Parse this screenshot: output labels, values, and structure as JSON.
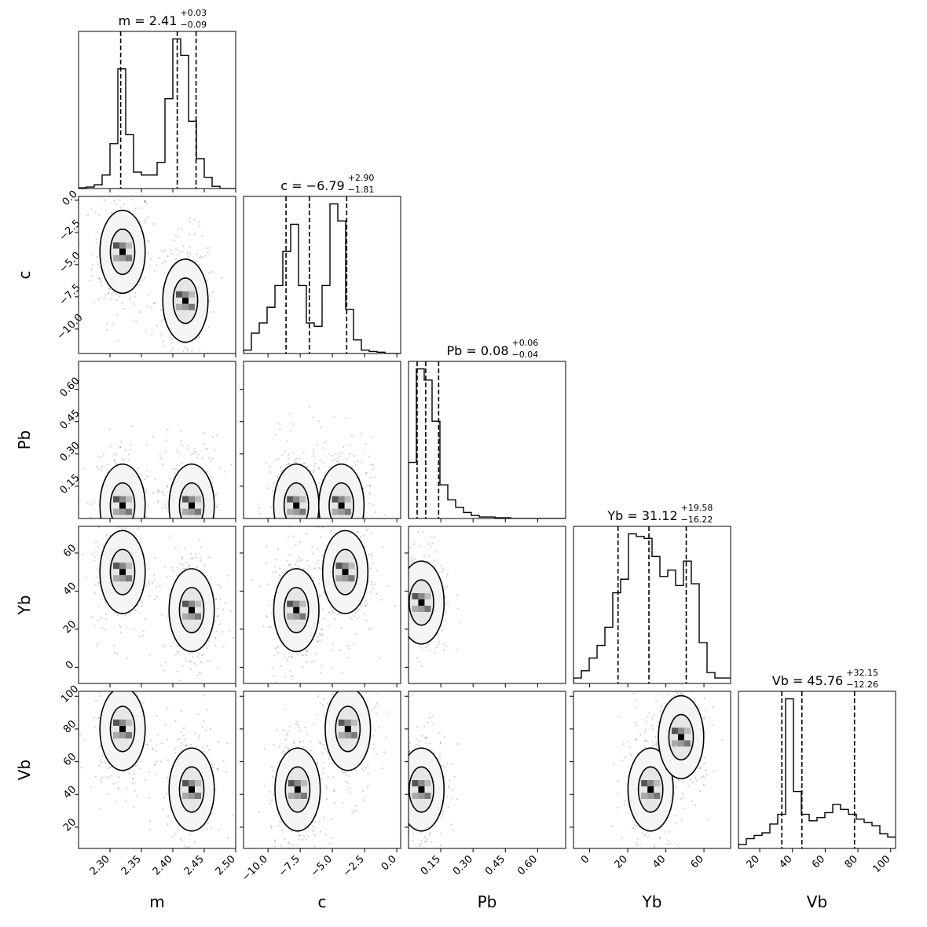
{
  "chart_data": {
    "type": "corner",
    "parameters": [
      "m",
      "c",
      "Pb",
      "Yb",
      "Vb"
    ],
    "axis_labels": [
      "m",
      "c",
      "Pb",
      "Yb",
      "Vb"
    ],
    "ranges": {
      "m": [
        2.25,
        2.5
      ],
      "c": [
        -11.9,
        0.3
      ],
      "Pb": [
        0.0,
        0.73
      ],
      "Yb": [
        -8.5,
        74.0
      ],
      "Vb": [
        7.0,
        103.0
      ]
    },
    "ticks": {
      "m": {
        "values": [
          2.3,
          2.35,
          2.4,
          2.45,
          2.5
        ],
        "labels": [
          "2.30",
          "2.35",
          "2.40",
          "2.45",
          "2.50"
        ]
      },
      "c": {
        "values": [
          -10.0,
          -7.5,
          -5.0,
          -2.5,
          0.0
        ],
        "labels": [
          "−10.0",
          "−7.5",
          "−5.0",
          "−2.5",
          "0.0"
        ]
      },
      "Pb": {
        "values": [
          0.15,
          0.3,
          0.45,
          0.6
        ],
        "labels": [
          "0.15",
          "0.30",
          "0.45",
          "0.60"
        ]
      },
      "Yb": {
        "values": [
          0,
          20,
          40,
          60
        ],
        "labels": [
          "0",
          "20",
          "40",
          "60"
        ]
      },
      "Vb": {
        "values": [
          20,
          40,
          60,
          80,
          100
        ],
        "labels": [
          "20",
          "40",
          "60",
          "80",
          "100"
        ]
      }
    },
    "titles": [
      {
        "param": "m",
        "name": "m",
        "median": "2.41",
        "plus": "+0.03",
        "minus": "−0.09"
      },
      {
        "param": "c",
        "name": "c",
        "median": "−6.79",
        "plus": "+2.90",
        "minus": "−1.81"
      },
      {
        "param": "Pb",
        "name": "Pb",
        "median": "0.08",
        "plus": "+0.06",
        "minus": "−0.04"
      },
      {
        "param": "Yb",
        "name": "Yb",
        "median": "31.12",
        "plus": "+19.58",
        "minus": "−16.22"
      },
      {
        "param": "Vb",
        "name": "Vb",
        "median": "45.76",
        "plus": "+32.15",
        "minus": "−12.26"
      }
    ],
    "quantiles": {
      "m": [
        2.317,
        2.407,
        2.437
      ],
      "c": [
        -8.6,
        -6.79,
        -3.89
      ],
      "Pb": [
        0.04,
        0.08,
        0.14
      ],
      "Yb": [
        14.9,
        31.12,
        50.7
      ],
      "Vb": [
        33.5,
        45.76,
        77.9
      ]
    },
    "histograms": {
      "m": {
        "edges": [
          2.25,
          2.2625,
          2.275,
          2.2875,
          2.3,
          2.3125,
          2.325,
          2.3375,
          2.35,
          2.3625,
          2.375,
          2.3875,
          2.4,
          2.4125,
          2.425,
          2.4375,
          2.45,
          2.4625,
          2.475,
          2.4875,
          2.5
        ],
        "counts": [
          1,
          2,
          5,
          18,
          60,
          160,
          72,
          22,
          18,
          18,
          35,
          120,
          200,
          178,
          90,
          40,
          15,
          3,
          0,
          0
        ]
      },
      "c": {
        "edges": [
          -11.9,
          -11.29,
          -10.68,
          -10.07,
          -9.46,
          -8.85,
          -8.24,
          -7.63,
          -7.02,
          -6.41,
          -5.8,
          -5.19,
          -4.58,
          -3.97,
          -3.36,
          -2.75,
          -2.14,
          -1.53,
          -0.92,
          -0.31,
          0.3
        ],
        "counts": [
          5,
          30,
          45,
          68,
          100,
          150,
          190,
          100,
          45,
          40,
          100,
          220,
          195,
          65,
          20,
          5,
          3,
          2,
          0,
          0
        ]
      },
      "Pb": {
        "edges": [
          0.0,
          0.0365,
          0.073,
          0.1095,
          0.146,
          0.1825,
          0.219,
          0.2555,
          0.292,
          0.3285,
          0.365,
          0.4015,
          0.438,
          0.4745,
          0.511,
          0.5475,
          0.584,
          0.6205,
          0.657,
          0.6935,
          0.73
        ],
        "counts": [
          75,
          200,
          185,
          130,
          45,
          25,
          15,
          8,
          4,
          2,
          2,
          1,
          1,
          0,
          0,
          0,
          0,
          0,
          0,
          0
        ]
      },
      "Yb": {
        "edges": [
          -8.5,
          -4.375,
          -0.25,
          3.875,
          8.0,
          12.125,
          16.25,
          20.375,
          24.5,
          28.625,
          32.75,
          36.875,
          41.0,
          45.125,
          49.25,
          53.375,
          57.5,
          61.625,
          65.75,
          69.875,
          74.0
        ],
        "counts": [
          6,
          14,
          28,
          42,
          62,
          100,
          115,
          165,
          162,
          160,
          140,
          118,
          125,
          108,
          135,
          110,
          45,
          12,
          6,
          6
        ]
      },
      "Vb": {
        "edges": [
          7.0,
          11.8,
          16.6,
          21.4,
          26.2,
          31.0,
          35.8,
          40.6,
          45.4,
          50.2,
          55.0,
          59.8,
          64.6,
          69.4,
          74.2,
          79.0,
          83.8,
          88.6,
          93.4,
          98.2,
          103.0
        ],
        "counts": [
          12,
          30,
          40,
          48,
          75,
          105,
          460,
          175,
          105,
          85,
          95,
          110,
          135,
          120,
          105,
          90,
          80,
          70,
          45,
          35
        ]
      }
    },
    "modes_2d": {
      "m-c": [
        [
          2.32,
          -4.0
        ],
        [
          2.42,
          -7.8
        ]
      ],
      "m-Pb": [
        [
          2.32,
          0.06
        ],
        [
          2.43,
          0.06
        ]
      ],
      "c-Pb": [
        [
          -7.8,
          0.06
        ],
        [
          -4.3,
          0.06
        ]
      ],
      "m-Yb": [
        [
          2.32,
          50
        ],
        [
          2.43,
          30
        ]
      ],
      "c-Yb": [
        [
          -4.0,
          50
        ],
        [
          -7.8,
          30
        ]
      ],
      "Pb-Yb": [
        [
          0.06,
          34
        ]
      ],
      "m-Vb": [
        [
          2.32,
          80
        ],
        [
          2.43,
          43
        ]
      ],
      "c-Vb": [
        [
          -3.8,
          80
        ],
        [
          -7.7,
          43
        ]
      ],
      "Pb-Vb": [
        [
          0.06,
          43
        ]
      ],
      "Yb-Vb": [
        [
          32,
          43
        ],
        [
          48,
          75
        ]
      ]
    }
  }
}
